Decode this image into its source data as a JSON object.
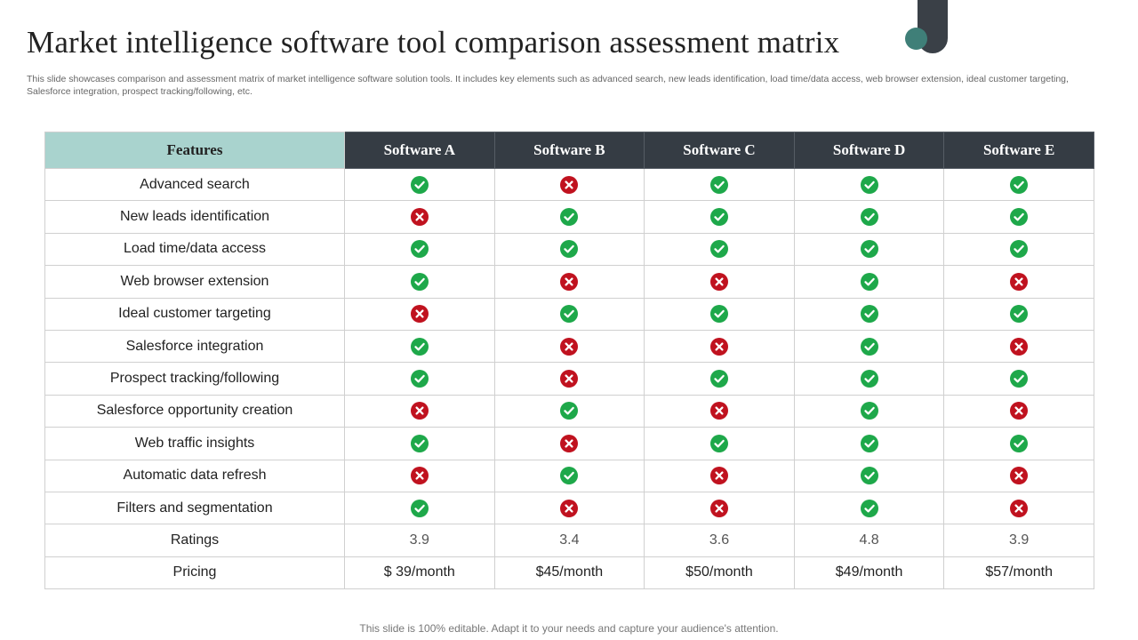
{
  "title": "Market intelligence software tool comparison assessment matrix",
  "subtitle": "This slide showcases comparison and assessment matrix of market intelligence software solution tools. It includes key elements such as advanced search, new leads identification, load time/data access, web browser extension, ideal customer targeting, Salesforce integration, prospect tracking/following, etc.",
  "colors": {
    "check": "#1ea84a",
    "cross": "#c0121f",
    "header_dark": "#353c44",
    "header_teal": "#a9d3ce"
  },
  "table": {
    "headers": [
      "Features",
      "Software A",
      "Software B",
      "Software C",
      "Software D",
      "Software E"
    ],
    "rows": [
      {
        "feature": "Advanced search",
        "values": [
          "check",
          "cross",
          "check",
          "check",
          "check"
        ]
      },
      {
        "feature": "New leads identification",
        "values": [
          "cross",
          "check",
          "check",
          "check",
          "check"
        ]
      },
      {
        "feature": "Load time/data access",
        "values": [
          "check",
          "check",
          "check",
          "check",
          "check"
        ]
      },
      {
        "feature": "Web browser extension",
        "values": [
          "check",
          "cross",
          "cross",
          "check",
          "cross"
        ]
      },
      {
        "feature": "Ideal customer targeting",
        "values": [
          "cross",
          "check",
          "check",
          "check",
          "check"
        ]
      },
      {
        "feature": "Salesforce integration",
        "values": [
          "check",
          "cross",
          "cross",
          "check",
          "cross"
        ]
      },
      {
        "feature": "Prospect tracking/following",
        "values": [
          "check",
          "cross",
          "check",
          "check",
          "check"
        ]
      },
      {
        "feature": "Salesforce opportunity creation",
        "values": [
          "cross",
          "check",
          "cross",
          "check",
          "cross"
        ]
      },
      {
        "feature": "Web traffic insights",
        "values": [
          "check",
          "cross",
          "check",
          "check",
          "check"
        ]
      },
      {
        "feature": "Automatic data refresh",
        "values": [
          "cross",
          "check",
          "cross",
          "check",
          "cross"
        ]
      },
      {
        "feature": "Filters and segmentation",
        "values": [
          "check",
          "cross",
          "cross",
          "check",
          "cross"
        ]
      }
    ],
    "ratings": {
      "label": "Ratings",
      "values": [
        "3.9",
        "3.4",
        "3.6",
        "4.8",
        "3.9"
      ]
    },
    "pricing": {
      "label": "Pricing",
      "values": [
        "$ 39/month",
        "$45/month",
        "$50/month",
        "$49/month",
        "$57/month"
      ]
    }
  },
  "footer": "This slide is 100% editable. Adapt it to your needs and capture your audience's attention."
}
